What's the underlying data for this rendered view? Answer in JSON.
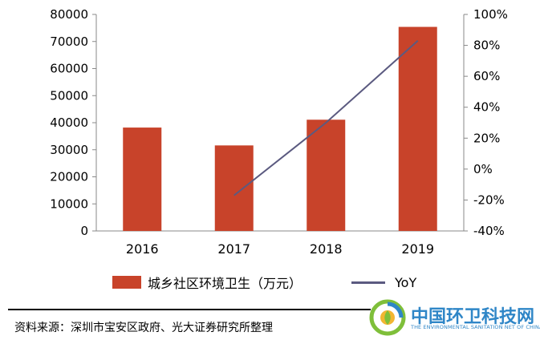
{
  "chart_data": {
    "type": "bar",
    "categories": [
      "2016",
      "2017",
      "2018",
      "2019"
    ],
    "series": [
      {
        "name": "城乡社区环境卫生（万元）",
        "type": "bar",
        "axis": "left",
        "values": [
          38200,
          31600,
          41100,
          75400
        ]
      },
      {
        "name": "YoY",
        "type": "line",
        "axis": "right",
        "values": [
          null,
          -17,
          30,
          83
        ]
      }
    ],
    "left_axis": {
      "ylim": [
        0,
        80000
      ],
      "ticks": [
        "80000",
        "70000",
        "60000",
        "50000",
        "40000",
        "30000",
        "20000",
        "10000",
        "0"
      ]
    },
    "right_axis": {
      "ylim": [
        -40,
        100
      ],
      "ticks": [
        "100%",
        "80%",
        "60%",
        "40%",
        "20%",
        "0%",
        "-20%",
        "-40%"
      ]
    },
    "colors": {
      "bar": "#c8432a",
      "line": "#5b5a80"
    },
    "legend_position": "bottom",
    "grid": false
  },
  "source": "资料来源：深圳市宝安区政府、光大证券研究所整理",
  "logo": {
    "title": "中国环卫科技网",
    "subtitle": "THE ENVIRONMENTAL SANITATION NET OF CHINA"
  }
}
